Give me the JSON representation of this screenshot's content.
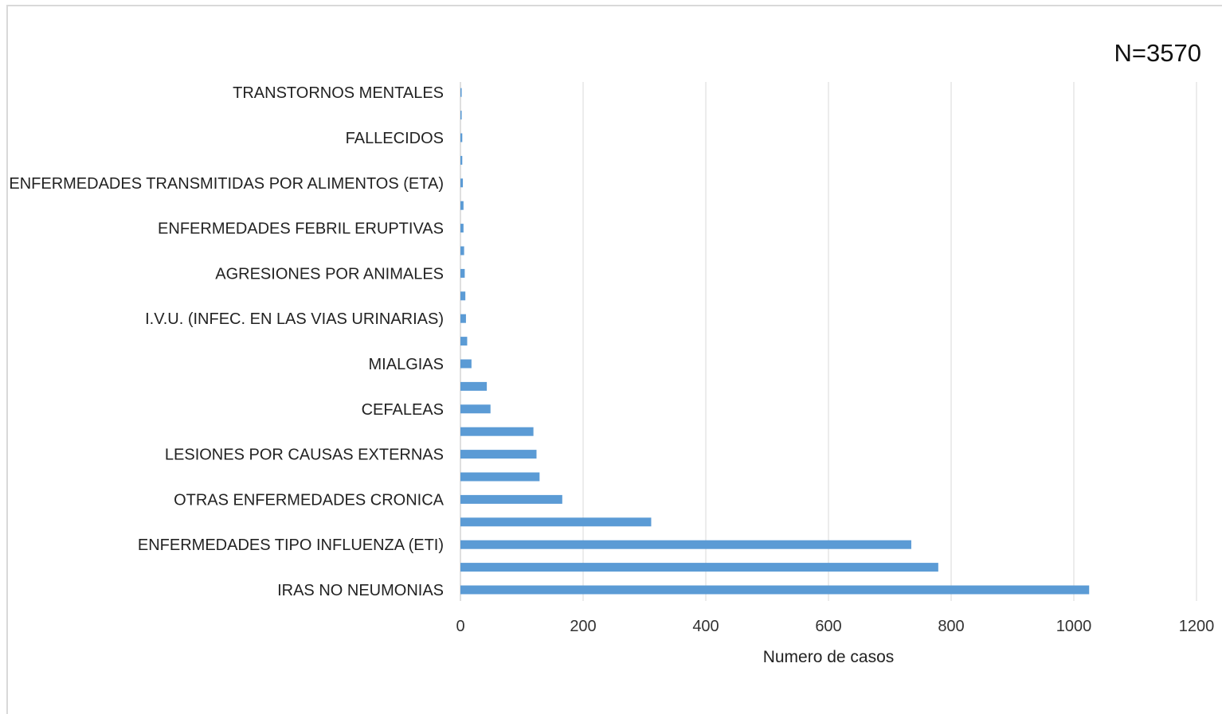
{
  "chart_data": {
    "type": "bar",
    "orientation": "horizontal",
    "annotation": "N=3570",
    "xlabel": "Numero de casos",
    "ylabel": "",
    "xlim": [
      0,
      1200
    ],
    "xticks": [
      0,
      200,
      400,
      600,
      800,
      1000,
      1200
    ],
    "grid": true,
    "legend": "none",
    "bar_color": "#5b9bd5",
    "categories": [
      "IRAS NO NEUMONIAS",
      "",
      "ENFERMEDADES TIPO INFLUENZA (ETI)",
      "",
      "OTRAS ENFERMEDADES CRONICA",
      "",
      "LESIONES POR CAUSAS EXTERNAS",
      "",
      "CEFALEAS",
      "",
      "MIALGIAS",
      "",
      "I.V.U. (INFEC. EN LAS VIAS URINARIAS)",
      "",
      "AGRESIONES POR ANIMALES",
      "",
      "ENFERMEDADES FEBRIL ERUPTIVAS",
      "",
      "ENFERMEDADES TRANSMITIDAS POR ALIMENTOS (ETA)",
      "",
      "FALLECIDOS",
      "",
      "TRANSTORNOS MENTALES"
    ],
    "values": [
      1025,
      779,
      735,
      311,
      166,
      129,
      124,
      119,
      49,
      43,
      18,
      11,
      9,
      8,
      7,
      6,
      5,
      5,
      4,
      3,
      3,
      2,
      2
    ]
  }
}
